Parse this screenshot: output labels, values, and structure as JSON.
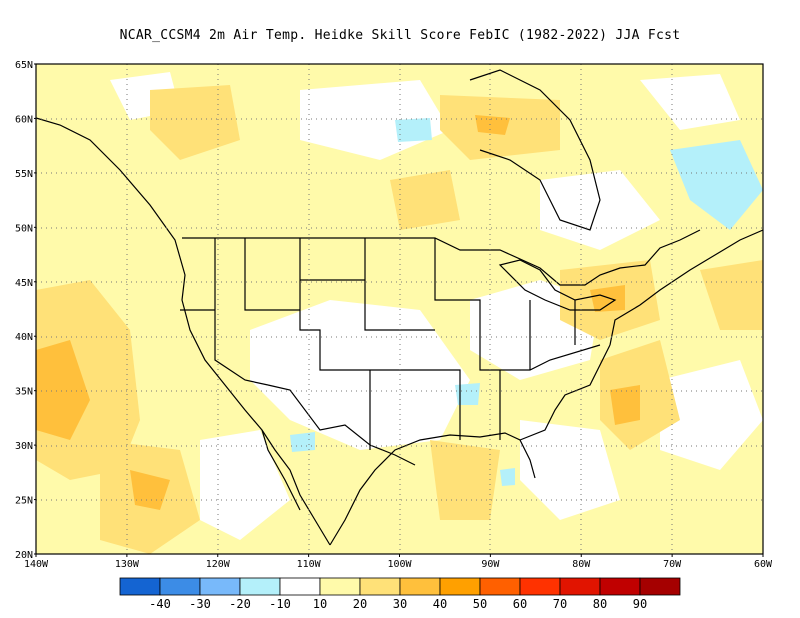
{
  "title": "NCAR_CCSM4  2m Air Temp. Heidke Skill Score FebIC (1982-2022) JJA Fcst",
  "map": {
    "lon_range": [
      -140,
      -60
    ],
    "lat_range": [
      20,
      65
    ],
    "lon_ticks": [
      "140W",
      "130W",
      "120W",
      "110W",
      "100W",
      "90W",
      "80W",
      "70W",
      "60W"
    ],
    "lat_ticks": [
      "20N",
      "25N",
      "30N",
      "35N",
      "40N",
      "45N",
      "50N",
      "55N",
      "60N",
      "65N"
    ],
    "grid": "dotted"
  },
  "colorbar": {
    "colors": [
      "#1464d2",
      "#3c8ce6",
      "#78b9fa",
      "#b4f0fa",
      "#ffffff",
      "#fffaaa",
      "#ffe178",
      "#ffc03c",
      "#ffa000",
      "#ff6000",
      "#ff3200",
      "#e11400",
      "#c00000",
      "#a50000"
    ],
    "labels": [
      "-40",
      "-30",
      "-20",
      "-10",
      "10",
      "20",
      "30",
      "40",
      "50",
      "60",
      "70",
      "80",
      "90"
    ]
  }
}
